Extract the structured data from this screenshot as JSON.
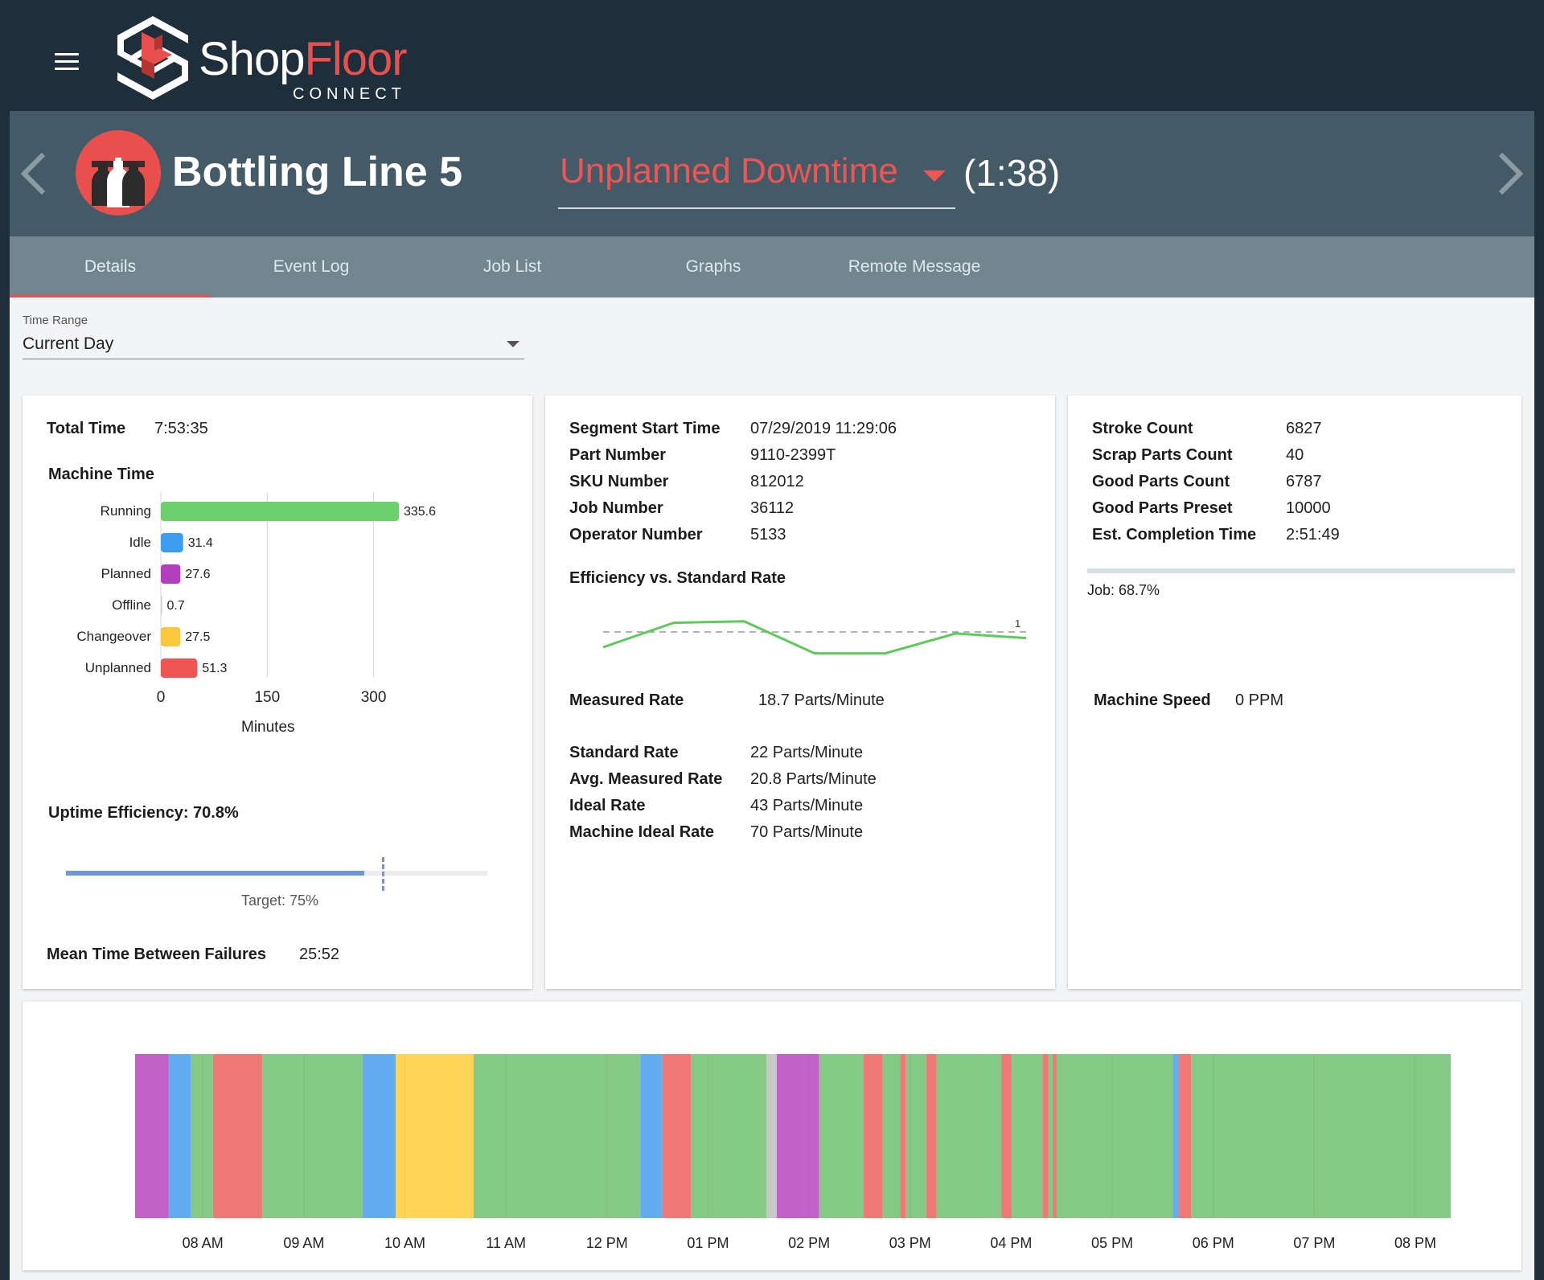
{
  "header": {
    "logo_shop": "Shop",
    "logo_floor": "Floor",
    "logo_sub": "CONNECT",
    "menu_icon": "hamburger-icon"
  },
  "machine": {
    "name": "Bottling Line 5",
    "status": "Unplanned Downtime",
    "timer": "(1:38)",
    "status_color": "#ee5553",
    "icon": "bottles-icon"
  },
  "tabs": [
    {
      "label": "Details",
      "active": true
    },
    {
      "label": "Event Log"
    },
    {
      "label": "Job List"
    },
    {
      "label": "Graphs"
    },
    {
      "label": "Remote Message"
    }
  ],
  "time_range": {
    "label": "Time Range",
    "value": "Current Day"
  },
  "card1": {
    "total_time_label": "Total Time",
    "total_time_value": "7:53:35",
    "machine_time_title": "Machine Time",
    "uptime_label": "Uptime Efficiency: 70.8%",
    "uptime_value": 70.8,
    "target_label": "Target: 75%",
    "target_value": 75,
    "mtbf_label": "Mean Time Between Failures",
    "mtbf_value": "25:52"
  },
  "chart_data": {
    "type": "bar",
    "title": "Machine Time",
    "orientation": "horizontal",
    "categories": [
      "Running",
      "Idle",
      "Planned",
      "Offline",
      "Changeover",
      "Unplanned"
    ],
    "values": [
      335.6,
      31.4,
      27.6,
      0.7,
      27.5,
      51.3
    ],
    "value_labels": [
      "335.6",
      "31.4",
      "27.6",
      "0.7",
      "27.5",
      "51.3"
    ],
    "colors": [
      "#6cd06c",
      "#3b9cf0",
      "#b33fbf",
      "#cccccc",
      "#fbc73c",
      "#ee5553"
    ],
    "xlabel": "Minutes",
    "xticks": [
      0,
      150,
      300
    ],
    "xlim": [
      0,
      420
    ],
    "grid": true
  },
  "card2": {
    "details": [
      {
        "label": "Segment Start Time",
        "value": "07/29/2019 11:29:06"
      },
      {
        "label": "Part Number",
        "value": "9110-2399T"
      },
      {
        "label": "SKU Number",
        "value": "812012"
      },
      {
        "label": "Job Number",
        "value": "36112"
      },
      {
        "label": "Operator Number",
        "value": "5133"
      }
    ],
    "efficiency_title": "Efficiency vs. Standard Rate",
    "efficiency_series": [
      0.8,
      1.12,
      1.14,
      0.72,
      0.72,
      0.98,
      0.92
    ],
    "efficiency_reference": 1,
    "efficiency_reference_label": "1",
    "measured_rate_label": "Measured Rate",
    "measured_rate_value": "18.7 Parts/Minute",
    "rates": [
      {
        "label": "Standard Rate",
        "value": "22 Parts/Minute"
      },
      {
        "label": "Avg. Measured Rate",
        "value": "20.8 Parts/Minute"
      },
      {
        "label": "Ideal Rate",
        "value": "43 Parts/Minute"
      },
      {
        "label": "Machine Ideal Rate",
        "value": "70 Parts/Minute"
      }
    ]
  },
  "card3": {
    "counts": [
      {
        "label": "Stroke Count",
        "value": "6827"
      },
      {
        "label": "Scrap Parts Count",
        "value": "40"
      },
      {
        "label": "Good Parts Count",
        "value": "6787"
      },
      {
        "label": "Good Parts Preset",
        "value": "10000"
      },
      {
        "label": "Est. Completion Time",
        "value": "2:51:49"
      }
    ],
    "job_label": "Job: 68.7%",
    "job_progress": 68.7,
    "machine_speed_label": "Machine Speed",
    "machine_speed_value": "0 PPM"
  },
  "timeline": {
    "state_colors": {
      "running": "#85c986",
      "idle": "#63acf1",
      "planned": "#c262c8",
      "offline": "#c8c8c8",
      "changeover": "#fed557",
      "unplanned": "#f07876"
    },
    "start_hour": 7.33,
    "end_hour": 20.35,
    "segments": [
      {
        "state": "planned",
        "start": 7.33,
        "end": 7.66
      },
      {
        "state": "idle",
        "start": 7.66,
        "end": 7.88
      },
      {
        "state": "running",
        "start": 7.88,
        "end": 8.1
      },
      {
        "state": "unplanned",
        "start": 8.1,
        "end": 8.59
      },
      {
        "state": "running",
        "start": 8.59,
        "end": 9.58
      },
      {
        "state": "idle",
        "start": 9.58,
        "end": 9.91
      },
      {
        "state": "changeover",
        "start": 9.91,
        "end": 10.68
      },
      {
        "state": "running",
        "start": 10.68,
        "end": 12.33
      },
      {
        "state": "idle",
        "start": 12.33,
        "end": 12.55
      },
      {
        "state": "unplanned",
        "start": 12.55,
        "end": 12.83
      },
      {
        "state": "running",
        "start": 12.83,
        "end": 13.58
      },
      {
        "state": "offline",
        "start": 13.58,
        "end": 13.68
      },
      {
        "state": "planned",
        "start": 13.68,
        "end": 14.1
      },
      {
        "state": "running",
        "start": 14.1,
        "end": 14.54
      },
      {
        "state": "unplanned",
        "start": 14.54,
        "end": 14.73
      },
      {
        "state": "running",
        "start": 14.73,
        "end": 14.9
      },
      {
        "state": "unplanned",
        "start": 14.9,
        "end": 14.96
      },
      {
        "state": "running",
        "start": 14.96,
        "end": 15.16
      },
      {
        "state": "unplanned",
        "start": 15.16,
        "end": 15.26
      },
      {
        "state": "running",
        "start": 15.26,
        "end": 15.9
      },
      {
        "state": "unplanned",
        "start": 15.9,
        "end": 16.0
      },
      {
        "state": "running",
        "start": 16.0,
        "end": 16.31
      },
      {
        "state": "unplanned",
        "start": 16.31,
        "end": 16.37
      },
      {
        "state": "running",
        "start": 16.37,
        "end": 16.41
      },
      {
        "state": "unplanned",
        "start": 16.41,
        "end": 16.45
      },
      {
        "state": "running",
        "start": 16.45,
        "end": 17.6
      },
      {
        "state": "idle",
        "start": 17.6,
        "end": 17.66
      },
      {
        "state": "unplanned",
        "start": 17.66,
        "end": 17.78
      },
      {
        "state": "running",
        "start": 17.78,
        "end": 20.35
      }
    ],
    "hour_labels": [
      "08 AM",
      "09 AM",
      "10 AM",
      "11 AM",
      "12 PM",
      "01 PM",
      "02 PM",
      "03 PM",
      "04 PM",
      "05 PM",
      "06 PM",
      "07 PM",
      "08 PM"
    ]
  }
}
